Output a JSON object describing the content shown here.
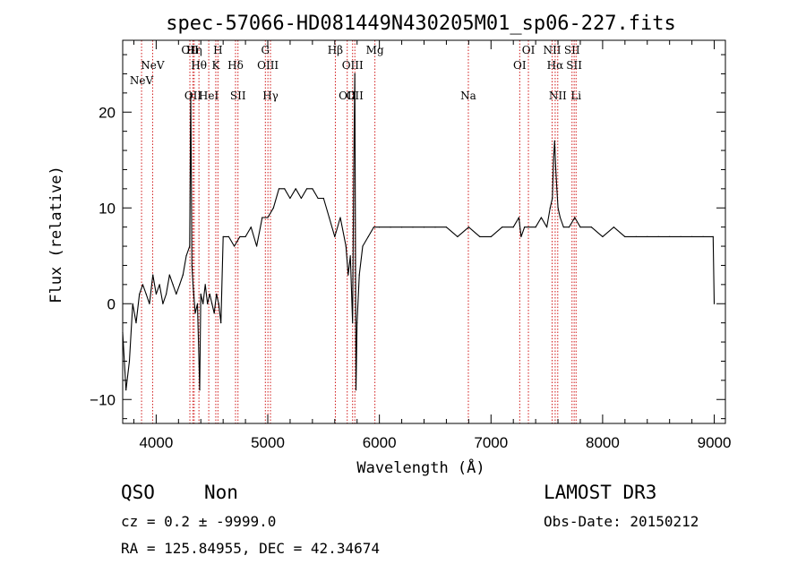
{
  "chart_data": {
    "type": "line",
    "title": "spec-57066-HD081449N430205M01_sp06-227.fits",
    "xlabel": "Wavelength (Å)",
    "ylabel": "Flux (relative)",
    "xlim": [
      3700,
      9100
    ],
    "ylim": [
      -12.5,
      27.5
    ],
    "x_ticks": [
      4000,
      5000,
      6000,
      7000,
      8000,
      9000
    ],
    "y_ticks": [
      -10,
      0,
      10,
      20
    ],
    "x_tick_labels": [
      "4000",
      "5000",
      "6000",
      "7000",
      "8000",
      "9000"
    ],
    "y_tick_labels": [
      "−10",
      "0",
      "10",
      "20"
    ],
    "grid": false,
    "line_color": "#000000",
    "marker_color": "#cc0000",
    "series": [
      {
        "x": [
          3700,
          3730,
          3760,
          3790,
          3820,
          3850,
          3880,
          3910,
          3940,
          3970,
          4000,
          4030,
          4060,
          4090,
          4120,
          4150,
          4180,
          4210,
          4240,
          4270,
          4300,
          4310,
          4320,
          4330,
          4350,
          4370,
          4390,
          4400,
          4420,
          4440,
          4460,
          4480,
          4500,
          4520,
          4540,
          4560,
          4580,
          4600,
          4650,
          4700,
          4750,
          4800,
          4850,
          4900,
          4950,
          5000,
          5050,
          5100,
          5150,
          5200,
          5250,
          5300,
          5350,
          5400,
          5450,
          5500,
          5550,
          5600,
          5650,
          5700,
          5720,
          5740,
          5760,
          5770,
          5780,
          5790,
          5800,
          5820,
          5850,
          5900,
          5950,
          6000,
          6100,
          6200,
          6300,
          6400,
          6500,
          6600,
          6700,
          6800,
          6900,
          7000,
          7100,
          7200,
          7250,
          7270,
          7300,
          7400,
          7450,
          7500,
          7530,
          7550,
          7560,
          7570,
          7580,
          7590,
          7600,
          7620,
          7650,
          7700,
          7750,
          7800,
          7900,
          8000,
          8100,
          8200,
          8300,
          8400,
          8500,
          8600,
          8700,
          8800,
          8900,
          8990,
          9000
        ],
        "y": [
          -3,
          -9,
          -6,
          0,
          -2,
          1,
          2,
          1,
          0,
          3,
          1,
          2,
          0,
          1,
          3,
          2,
          1,
          2,
          3,
          5,
          6,
          22,
          4,
          2,
          -1,
          0,
          -9,
          1,
          0,
          2,
          0,
          1,
          0,
          -1,
          1,
          0,
          -2,
          7,
          7,
          6,
          7,
          7,
          8,
          6,
          9,
          9,
          10,
          12,
          12,
          11,
          12,
          11,
          12,
          12,
          11,
          11,
          9,
          7,
          9,
          6,
          3,
          5,
          -2,
          14,
          24,
          -9,
          -2,
          3,
          6,
          7,
          8,
          8,
          8,
          8,
          8,
          8,
          8,
          8,
          7,
          8,
          7,
          7,
          8,
          8,
          9,
          7,
          8,
          8,
          9,
          8,
          10,
          11,
          15,
          17,
          14,
          12,
          10,
          9,
          8,
          8,
          9,
          8,
          8,
          7,
          8,
          7,
          7,
          7,
          7,
          7,
          7,
          7,
          7,
          7,
          0
        ]
      }
    ],
    "line_markers": [
      {
        "x": 3869,
        "label": "NeV",
        "row": 2
      },
      {
        "x": 3968,
        "label": "NeV",
        "row": 1
      },
      {
        "x": 4302,
        "label": "OII",
        "row": 0
      },
      {
        "x": 4330,
        "label": "OII",
        "row": 3
      },
      {
        "x": 4341,
        "label": "Hη",
        "row": 0
      },
      {
        "x": 4383,
        "label": "Hθ",
        "row": 1
      },
      {
        "x": 4471,
        "label": "HeI",
        "row": 3
      },
      {
        "x": 4553,
        "label": "H",
        "row": 0
      },
      {
        "x": 4534,
        "label": "K",
        "row": 1
      },
      {
        "x": 4711,
        "label": "Hδ",
        "row": 1
      },
      {
        "x": 4733,
        "label": "SII",
        "row": 3
      },
      {
        "x": 4978,
        "label": "G",
        "row": 0
      },
      {
        "x": 5001,
        "label": "OIII",
        "row": 1
      },
      {
        "x": 5024,
        "label": "Hγ",
        "row": 3
      },
      {
        "x": 5605,
        "label": "Hβ",
        "row": 0
      },
      {
        "x": 5712,
        "label": "OII",
        "row": 3
      },
      {
        "x": 5760,
        "label": "OIII",
        "row": 1
      },
      {
        "x": 5780,
        "label": "OII",
        "row": 3
      },
      {
        "x": 5960,
        "label": "Mg",
        "row": 0
      },
      {
        "x": 6797,
        "label": "Na",
        "row": 3
      },
      {
        "x": 7257,
        "label": "OI",
        "row": 1
      },
      {
        "x": 7335,
        "label": "OI",
        "row": 0
      },
      {
        "x": 7547,
        "label": "NII",
        "row": 0
      },
      {
        "x": 7575,
        "label": "Hα",
        "row": 1
      },
      {
        "x": 7598,
        "label": "NII",
        "row": 3
      },
      {
        "x": 7726,
        "label": "SII",
        "row": 0
      },
      {
        "x": 7745,
        "label": "SII",
        "row": 1
      },
      {
        "x": 7762,
        "label": "Li",
        "row": 3
      }
    ]
  },
  "info": {
    "class": "QSO",
    "subclass": "Non",
    "survey": "LAMOST DR3",
    "cz": "cz = 0.2 ± -9999.0",
    "obs_date": "Obs-Date: 20150212",
    "radec": "RA = 125.84955, DEC =  42.34674"
  }
}
